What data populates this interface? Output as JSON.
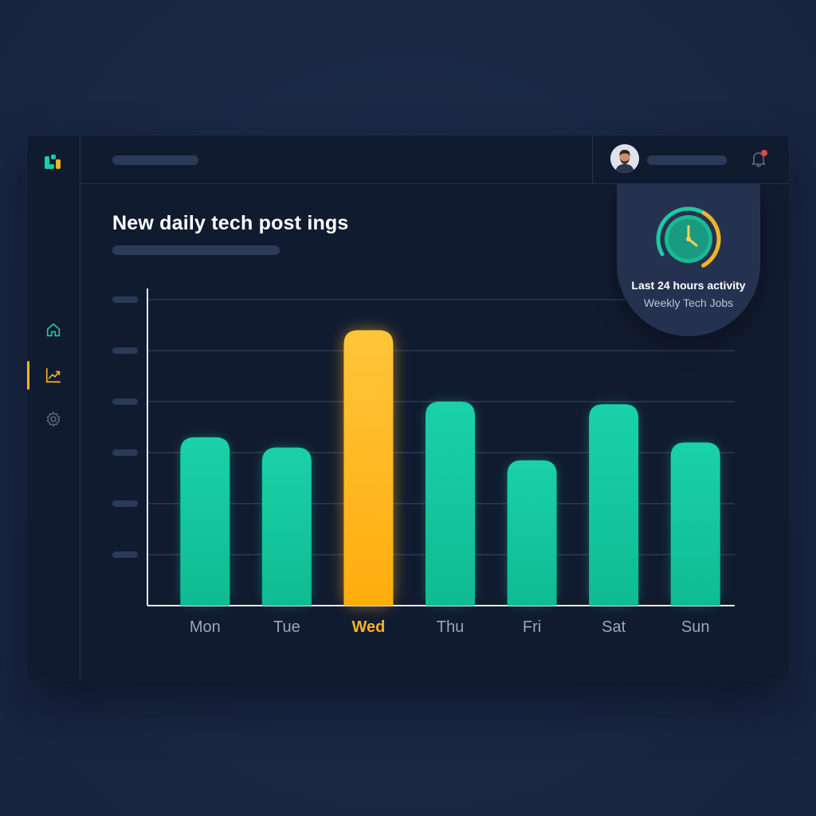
{
  "header": {
    "title": "New daily  tech post ings"
  },
  "activity_card": {
    "title": "Last 24 hours activity",
    "subtitle": "Weekly Tech Jobs",
    "accent_teal": "#1ec9a3",
    "accent_yellow": "#f5b323"
  },
  "sidebar": {
    "items": [
      {
        "icon": "home-icon",
        "active": false
      },
      {
        "icon": "trend-chart-icon",
        "active": true
      },
      {
        "icon": "gear-icon",
        "active": false
      }
    ]
  },
  "colors": {
    "bar": "#16c7a0",
    "highlight": "#ffb81c",
    "grid": "#3a4866",
    "text_muted": "#9aa6bd"
  },
  "chart_data": {
    "type": "bar",
    "categories": [
      "Mon",
      "Tue",
      "Wed",
      "Thu",
      "Fri",
      "Sat",
      "Sun"
    ],
    "values": [
      3.3,
      3.1,
      5.4,
      4.0,
      2.85,
      3.95,
      3.2
    ],
    "highlight_index": 2,
    "title": "New daily  tech post ings",
    "xlabel": "",
    "ylabel": "",
    "ylim": [
      0,
      6
    ],
    "grid": true,
    "ytick_labels_hidden": true
  }
}
